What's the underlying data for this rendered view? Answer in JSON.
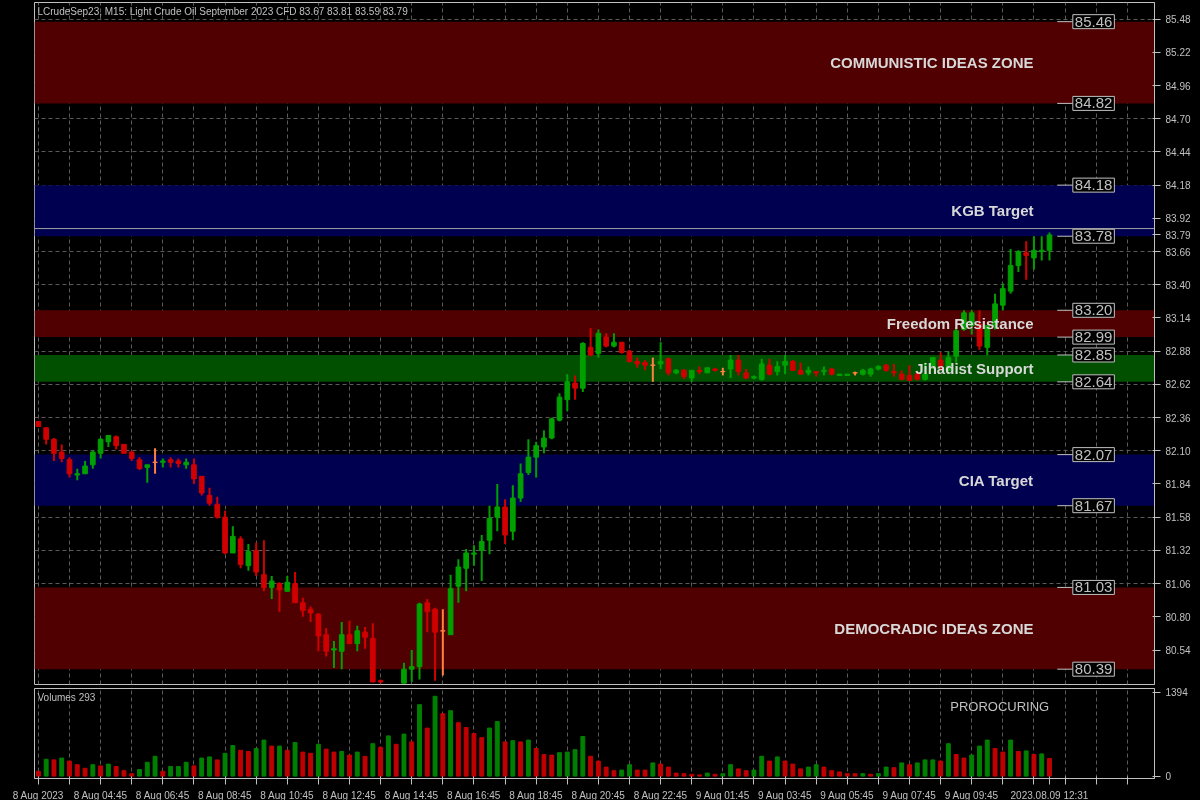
{
  "chart_data": [
    {
      "type": "candlestick",
      "title": "LCrudeSep23, M15:  Light Crude Oil September 2023 CFD  83.67 83.81 83.59 83.79",
      "categories": [
        null,
        null,
        null,
        null,
        null,
        null,
        null,
        null,
        null,
        null,
        null,
        null,
        null,
        null,
        null,
        null,
        null,
        null,
        null,
        null,
        null,
        null,
        null,
        null,
        null,
        null,
        null,
        null,
        null,
        null,
        null,
        null,
        null,
        null,
        null,
        null,
        null,
        null,
        null,
        null,
        null,
        null,
        null,
        null,
        null,
        null,
        null,
        null,
        null,
        null,
        null,
        null,
        null,
        null,
        null,
        null,
        null,
        null,
        null,
        null,
        null,
        null,
        null,
        null,
        null,
        null,
        null,
        null,
        null,
        null,
        null,
        null,
        null,
        null,
        null,
        null,
        null,
        null,
        null,
        null,
        null,
        null,
        null,
        null,
        null,
        null,
        null,
        null,
        null,
        null,
        null,
        null,
        null,
        null,
        null,
        null,
        null,
        null,
        null,
        null,
        null,
        null,
        null,
        null,
        null,
        null,
        null,
        null,
        null,
        null,
        null,
        null,
        null,
        null,
        null,
        null,
        null,
        null,
        null,
        null,
        null,
        null,
        null,
        null,
        null,
        null,
        null,
        null,
        null,
        null,
        null,
        null,
        null,
        null,
        null,
        null,
        null,
        null,
        null,
        null,
        null,
        null,
        null,
        null
      ],
      "ylim": [
        80.27,
        85.61
      ],
      "yticks": [
        85.48,
        85.22,
        84.96,
        {
          "value": 84.7,
          "label": "84.70"
        },
        84.44,
        84.18,
        83.92,
        {
          "value": 83.79,
          "label": "83.79"
        },
        83.66,
        {
          "value": 83.4,
          "label": "83.40"
        },
        83.14,
        82.88,
        82.62,
        82.36,
        {
          "value": 82.1,
          "label": "82.10"
        },
        81.84,
        81.58,
        81.32,
        81.06,
        {
          "value": 80.8,
          "label": "80.80"
        },
        80.54
      ],
      "tick_labels": "y",
      "grid": true,
      "ohlc": [
        [
          82.33,
          82.33,
          82.29,
          82.29
        ],
        [
          82.28,
          82.28,
          82.15,
          82.19
        ],
        [
          82.19,
          82.2,
          82.02,
          82.08
        ],
        [
          82.09,
          82.15,
          82.01,
          82.04
        ],
        [
          82.03,
          82.05,
          81.89,
          81.92
        ],
        [
          81.91,
          81.96,
          81.87,
          81.92
        ],
        [
          81.92,
          82.02,
          81.92,
          81.98
        ],
        [
          81.99,
          82.1,
          81.96,
          82.09
        ],
        [
          82.08,
          82.2,
          82.04,
          82.19
        ],
        [
          82.17,
          82.22,
          82.13,
          82.22
        ],
        [
          82.21,
          82.22,
          82.11,
          82.14
        ],
        [
          82.15,
          82.15,
          82.08,
          82.08
        ],
        [
          82.09,
          82.1,
          82.02,
          82.04
        ],
        [
          82.03,
          82.05,
          81.95,
          81.96
        ],
        [
          81.97,
          81.99,
          81.85,
          81.99
        ],
        [
          82.01,
          82.12,
          81.92,
          82.01
        ],
        [
          82.01,
          82.04,
          81.97,
          82.02
        ],
        [
          82.03,
          82.05,
          81.97,
          82.01
        ],
        [
          82.02,
          82.04,
          81.97,
          82.0
        ],
        [
          81.99,
          82.04,
          81.96,
          82.01
        ],
        [
          81.99,
          82.04,
          81.84,
          81.88
        ],
        [
          81.9,
          81.9,
          81.75,
          81.77
        ],
        [
          81.75,
          81.81,
          81.67,
          81.69
        ],
        [
          81.68,
          81.74,
          81.57,
          81.58
        ],
        [
          81.58,
          81.63,
          81.29,
          81.3
        ],
        [
          81.3,
          81.51,
          81.3,
          81.43
        ],
        [
          81.41,
          81.43,
          81.18,
          81.21
        ],
        [
          81.2,
          81.37,
          81.16,
          81.31
        ],
        [
          81.32,
          81.38,
          81.12,
          81.15
        ],
        [
          81.13,
          81.4,
          81.0,
          81.03
        ],
        [
          81.03,
          81.12,
          80.94,
          81.08
        ],
        [
          81.06,
          81.07,
          80.84,
          81.01
        ],
        [
          81.0,
          81.12,
          81.0,
          81.07
        ],
        [
          81.06,
          81.15,
          80.91,
          80.91
        ],
        [
          80.91,
          80.95,
          80.8,
          80.85
        ],
        [
          80.86,
          80.88,
          80.76,
          80.83
        ],
        [
          80.82,
          80.83,
          80.53,
          80.65
        ],
        [
          80.66,
          80.71,
          80.49,
          80.53
        ],
        [
          80.54,
          80.61,
          80.4,
          80.55
        ],
        [
          80.53,
          80.76,
          80.39,
          80.66
        ],
        [
          80.66,
          80.77,
          80.59,
          80.59
        ],
        [
          80.59,
          80.73,
          80.53,
          80.69
        ],
        [
          80.68,
          80.72,
          80.55,
          80.64
        ],
        [
          80.63,
          80.75,
          80.29,
          80.29
        ],
        [
          80.3,
          80.31,
          80.28,
          80.29
        ],
        null,
        null,
        [
          80.28,
          80.44,
          80.28,
          80.39
        ],
        [
          80.39,
          80.54,
          80.29,
          80.41
        ],
        [
          80.41,
          80.91,
          80.31,
          80.9
        ],
        [
          80.91,
          80.94,
          80.68,
          80.84
        ],
        [
          80.86,
          80.87,
          80.3,
          80.68
        ],
        [
          80.69,
          80.86,
          80.34,
          80.69
        ],
        [
          80.66,
          81.13,
          80.66,
          81.02
        ],
        [
          81.04,
          81.25,
          80.91,
          81.19
        ],
        [
          81.18,
          81.33,
          81.0,
          81.3
        ],
        [
          81.29,
          81.36,
          81.2,
          81.3
        ],
        [
          81.32,
          81.44,
          81.08,
          81.39
        ],
        [
          81.4,
          81.67,
          81.29,
          81.57
        ],
        [
          81.58,
          81.84,
          81.47,
          81.66
        ],
        [
          81.66,
          81.72,
          81.37,
          81.44
        ],
        [
          81.47,
          81.83,
          81.4,
          81.73
        ],
        [
          81.73,
          82.0,
          81.7,
          81.92
        ],
        [
          81.93,
          82.19,
          81.91,
          82.05
        ],
        [
          82.05,
          82.17,
          81.89,
          82.14
        ],
        [
          82.13,
          82.26,
          82.08,
          82.2
        ],
        [
          82.2,
          82.36,
          82.19,
          82.35
        ],
        [
          82.34,
          82.55,
          82.33,
          82.52
        ],
        [
          82.5,
          82.7,
          82.41,
          82.64
        ],
        [
          82.63,
          82.69,
          82.5,
          82.59
        ],
        [
          82.59,
          82.95,
          82.56,
          82.94
        ],
        [
          82.91,
          83.06,
          82.84,
          82.85
        ],
        [
          82.86,
          83.05,
          82.83,
          83.02
        ],
        [
          82.99,
          83.02,
          82.91,
          82.92
        ],
        [
          82.92,
          83.02,
          82.91,
          82.95
        ],
        [
          82.95,
          82.95,
          82.86,
          82.87
        ],
        [
          82.88,
          82.89,
          82.79,
          82.8
        ],
        [
          82.8,
          82.83,
          82.75,
          82.78
        ],
        [
          82.79,
          82.81,
          82.73,
          82.77
        ],
        [
          82.77,
          82.83,
          82.64,
          82.77
        ],
        [
          82.78,
          82.95,
          82.74,
          82.8
        ],
        [
          82.82,
          82.83,
          82.69,
          82.71
        ],
        [
          82.71,
          82.74,
          82.7,
          82.73
        ],
        [
          82.73,
          82.74,
          82.66,
          82.68
        ],
        [
          82.67,
          82.73,
          82.64,
          82.73
        ],
        [
          82.73,
          82.76,
          82.7,
          82.72
        ],
        [
          82.71,
          82.75,
          82.71,
          82.75
        ],
        [
          82.74,
          82.75,
          82.72,
          82.73
        ],
        [
          82.72,
          82.75,
          82.69,
          82.72
        ],
        [
          82.74,
          82.85,
          82.67,
          82.81
        ],
        [
          82.81,
          82.85,
          82.69,
          82.72
        ],
        [
          82.71,
          82.74,
          82.66,
          82.67
        ],
        [
          82.67,
          82.69,
          82.66,
          82.68
        ],
        [
          82.66,
          82.82,
          82.65,
          82.78
        ],
        [
          82.77,
          82.82,
          82.69,
          82.7
        ],
        [
          82.72,
          82.8,
          82.69,
          82.76
        ],
        [
          82.77,
          82.85,
          82.7,
          82.8
        ],
        [
          82.8,
          82.81,
          82.73,
          82.73
        ],
        [
          82.73,
          82.79,
          82.7,
          82.7
        ],
        [
          82.71,
          82.76,
          82.69,
          82.73
        ],
        [
          82.72,
          82.72,
          82.68,
          82.71
        ],
        [
          82.72,
          82.76,
          82.69,
          82.73
        ],
        [
          82.74,
          82.75,
          82.69,
          82.7
        ],
        [
          82.69,
          82.7,
          82.69,
          82.7
        ],
        [
          82.69,
          82.7,
          82.69,
          82.7
        ],
        [
          82.71,
          82.72,
          82.69,
          82.71
        ],
        [
          82.7,
          82.74,
          82.69,
          82.73
        ],
        [
          82.7,
          82.75,
          82.68,
          82.74
        ],
        [
          82.74,
          82.77,
          82.73,
          82.76
        ],
        [
          82.77,
          82.78,
          82.72,
          82.73
        ],
        [
          82.72,
          82.78,
          82.68,
          82.71
        ],
        [
          82.7,
          82.73,
          82.65,
          82.66
        ],
        [
          82.69,
          82.77,
          82.65,
          82.65
        ],
        [
          82.7,
          82.72,
          82.65,
          82.66
        ],
        [
          82.66,
          82.79,
          82.65,
          82.7
        ],
        [
          82.75,
          82.83,
          82.74,
          82.83
        ],
        [
          82.81,
          82.87,
          82.73,
          82.76
        ],
        [
          82.73,
          82.88,
          82.73,
          82.83
        ],
        [
          82.84,
          83.07,
          82.79,
          83.04
        ],
        [
          83.05,
          83.2,
          83.04,
          83.18
        ],
        [
          83.08,
          83.2,
          83.01,
          83.18
        ],
        [
          83.09,
          83.2,
          82.89,
          82.92
        ],
        [
          82.91,
          83.08,
          82.85,
          83.08
        ],
        [
          83.08,
          83.33,
          83.05,
          83.25
        ],
        [
          83.24,
          83.41,
          83.2,
          83.37
        ],
        [
          83.35,
          83.68,
          83.33,
          83.55
        ],
        [
          83.55,
          83.67,
          83.5,
          83.66
        ],
        [
          83.65,
          83.74,
          83.44,
          83.63
        ],
        [
          83.61,
          83.78,
          83.52,
          83.67
        ],
        [
          83.66,
          83.78,
          83.59,
          83.67
        ],
        [
          83.67,
          83.81,
          83.59,
          83.79
        ],
        null,
        null,
        null,
        null,
        null,
        null,
        null,
        null,
        null,
        null,
        null,
        null,
        null
      ],
      "colors": [
        "#d00000",
        "#d00000",
        "#d00000",
        "#d00000",
        "#d00000",
        "#00a000",
        "#00a000",
        "#00a000",
        "#00a000",
        "#00a000",
        "#d00000",
        "#d00000",
        "#d00000",
        "#d00000",
        "#00a000",
        "#ff8040",
        "#00a000",
        "#d00000",
        "#d00000",
        "#00a000",
        "#d00000",
        "#d00000",
        "#d00000",
        "#d00000",
        "#d00000",
        "#00a000",
        "#d00000",
        "#00a000",
        "#d00000",
        "#d00000",
        "#00a000",
        "#d00000",
        "#00a000",
        "#d00000",
        "#d00000",
        "#d00000",
        "#d00000",
        "#d00000",
        "#00a000",
        "#00a000",
        "#d00000",
        "#00a000",
        "#d00000",
        "#d00000",
        "#d00000",
        null,
        null,
        "#00a000",
        "#00a000",
        "#00a000",
        "#d00000",
        "#d00000",
        "#ff8040",
        "#00a000",
        "#00a000",
        "#00a000",
        "#00a000",
        "#00a000",
        "#00a000",
        "#00a000",
        "#d00000",
        "#00a000",
        "#00a000",
        "#00a000",
        "#00a000",
        "#00a000",
        "#00a000",
        "#00a000",
        "#00a000",
        "#d00000",
        "#00a000",
        "#d00000",
        "#00a000",
        "#d00000",
        "#00a000",
        "#d00000",
        "#d00000",
        "#d00000",
        "#d00000",
        "#ff8040",
        "#00a000",
        "#d00000",
        "#00a000",
        "#d00000",
        "#00a000",
        "#d00000",
        "#00a000",
        "#d00000",
        "#ff8040",
        "#00a000",
        "#d00000",
        "#d00000",
        "#00a000",
        "#00a000",
        "#d00000",
        "#00a000",
        "#00a000",
        "#d00000",
        "#d00000",
        "#00a000",
        "#d00000",
        "#00a000",
        "#d00000",
        "#00a000",
        "#00a000",
        "#ff8040",
        "#00a000",
        "#00a000",
        "#00a000",
        "#d00000",
        "#d00000",
        "#d00000",
        "#d00000",
        "#d00000",
        "#00a000",
        "#00a000",
        "#d00000",
        "#00a000",
        "#00a000",
        "#00a000",
        "#00a000",
        "#d00000",
        "#00a000",
        "#00a000",
        "#00a000",
        "#00a000",
        "#00a000",
        "#d00000",
        "#00a000",
        "#00a000",
        "#00a000",
        null,
        null,
        null,
        null,
        null,
        null,
        null,
        null,
        null,
        null,
        null,
        null,
        null
      ],
      "bands": [
        {
          "axis": "y",
          "from": 84.82,
          "to": 85.46,
          "label": "COMMUNISTIC IDEAS ZONE",
          "color": "#500000"
        },
        {
          "axis": "y",
          "from": 83.78,
          "to": 84.18,
          "label": "KGB Target",
          "color": "#000050"
        },
        {
          "axis": "y",
          "from": 82.99,
          "to": 83.2,
          "label": "Freedom Resistance",
          "color": "#500000"
        },
        {
          "axis": "y",
          "from": 82.64,
          "to": 82.85,
          "label": "Jihadist Support",
          "color": "#005000"
        },
        {
          "axis": "y",
          "from": 81.67,
          "to": 82.07,
          "label": "CIA Target",
          "color": "#000050"
        },
        {
          "axis": "y",
          "from": 80.39,
          "to": 81.03,
          "label": "DEMOCRADIC IDEAS ZONE",
          "color": "#500000"
        }
      ],
      "ref_lines": [
        {
          "axis": "y",
          "value": 85.46,
          "label": "85.46"
        },
        {
          "axis": "y",
          "value": 84.82,
          "label": "84.82"
        },
        {
          "axis": "y",
          "value": 84.18,
          "label": "84.18"
        },
        {
          "axis": "y",
          "value": 83.78,
          "label": "83.78"
        },
        {
          "axis": "y",
          "value": 83.2,
          "label": "83.20"
        },
        {
          "axis": "y",
          "value": 82.99,
          "label": "82.99"
        },
        {
          "axis": "y",
          "value": 82.85,
          "label": "82.85"
        },
        {
          "axis": "y",
          "value": 82.64,
          "label": "82.64"
        },
        {
          "axis": "y",
          "value": 82.07,
          "label": "82.07"
        },
        {
          "axis": "y",
          "value": 81.67,
          "label": "81.67"
        },
        {
          "axis": "y",
          "value": 81.03,
          "label": "81.03"
        },
        {
          "axis": "y",
          "value": 80.39,
          "label": "80.39"
        },
        {
          "axis": "y",
          "value": 83.84,
          "color": "#a0a0a0"
        }
      ]
    },
    {
      "type": "bar",
      "title": "Volumes 293",
      "ylim": [
        -40,
        1460
      ],
      "categories": [
        "8 Aug 2023",
        null,
        null,
        null,
        null,
        null,
        null,
        null,
        "8 Aug 04:45",
        null,
        null,
        null,
        null,
        null,
        null,
        null,
        "8 Aug 06:45",
        null,
        null,
        null,
        null,
        null,
        null,
        null,
        "8 Aug 08:45",
        null,
        null,
        null,
        null,
        null,
        null,
        null,
        "8 Aug 10:45",
        null,
        null,
        null,
        null,
        null,
        null,
        null,
        "8 Aug 12:45",
        null,
        null,
        null,
        null,
        null,
        null,
        null,
        "8 Aug 14:45",
        null,
        null,
        null,
        null,
        null,
        null,
        null,
        "8 Aug 16:45",
        null,
        null,
        null,
        null,
        null,
        null,
        null,
        "8 Aug 18:45",
        null,
        null,
        null,
        null,
        null,
        null,
        null,
        "8 Aug 20:45",
        null,
        null,
        null,
        null,
        null,
        null,
        null,
        "8 Aug 22:45",
        null,
        null,
        null,
        null,
        null,
        null,
        null,
        "9 Aug 01:45",
        null,
        null,
        null,
        null,
        null,
        null,
        null,
        "9 Aug 03:45",
        null,
        null,
        null,
        null,
        null,
        null,
        null,
        "9 Aug 05:45",
        null,
        null,
        null,
        null,
        null,
        null,
        null,
        "9 Aug 07:45",
        null,
        null,
        null,
        null,
        null,
        null,
        null,
        "9 Aug 09:45",
        null,
        null,
        null,
        null,
        null,
        null,
        null,
        null,
        null,
        "2023.08.09 12:31",
        null,
        null,
        null,
        null,
        null,
        null,
        null,
        null,
        null,
        null,
        null,
        null,
        null
      ],
      "yticks": [
        0,
        1394
      ],
      "grid": "x",
      "values": [
        80,
        280,
        270,
        300,
        250,
        190,
        130,
        190,
        170,
        200,
        160,
        90,
        40,
        110,
        230,
        330,
        80,
        160,
        160,
        230,
        170,
        300,
        320,
        270,
        380,
        510,
        430,
        410,
        460,
        600,
        500,
        500,
        430,
        560,
        400,
        380,
        530,
        450,
        400,
        410,
        350,
        400,
        330,
        540,
        480,
        670,
        530,
        700,
        570,
        1190,
        800,
        1330,
        1040,
        1090,
        890,
        810,
        710,
        640,
        800,
        910,
        570,
        590,
        570,
        600,
        460,
        360,
        350,
        390,
        400,
        440,
        660,
        330,
        250,
        150,
        90,
        100,
        190,
        100,
        100,
        220,
        200,
        150,
        50,
        40,
        30,
        20,
        50,
        30,
        40,
        190,
        120,
        90,
        100,
        330,
        250,
        320,
        250,
        200,
        120,
        150,
        190,
        150,
        90,
        70,
        40,
        40,
        40,
        30,
        40,
        150,
        140,
        220,
        190,
        220,
        270,
        270,
        250,
        540,
        360,
        300,
        350,
        500,
        600,
        460,
        400,
        600,
        410,
        420,
        360,
        370,
        293,
        null,
        null,
        null,
        null,
        null,
        null,
        null,
        null,
        null,
        null,
        null,
        null,
        null
      ],
      "colors": [
        "#c00000",
        "#008000",
        "#c00000",
        "#008000",
        "#c00000",
        "#c00000",
        "#c00000",
        "#008000",
        "#c00000",
        "#008000",
        "#c00000",
        "#c00000",
        "#c00000",
        "#008000",
        "#008000",
        "#008000",
        "#c00000",
        "#008000",
        "#008000",
        "#008000",
        "#c00000",
        "#008000",
        "#008000",
        "#c00000",
        "#008000",
        "#008000",
        "#c00000",
        "#c00000",
        "#008000",
        "#008000",
        "#c00000",
        "#008000",
        "#c00000",
        "#008000",
        "#c00000",
        "#c00000",
        "#008000",
        "#c00000",
        "#c00000",
        "#008000",
        "#c00000",
        "#008000",
        "#c00000",
        "#008000",
        "#c00000",
        "#008000",
        "#c00000",
        "#008000",
        "#c00000",
        "#008000",
        "#c00000",
        "#008000",
        "#c00000",
        "#008000",
        "#c00000",
        "#c00000",
        "#c00000",
        "#c00000",
        "#008000",
        "#008000",
        "#c00000",
        "#008000",
        "#c00000",
        "#008000",
        "#c00000",
        "#c00000",
        "#c00000",
        "#008000",
        "#008000",
        "#008000",
        "#008000",
        "#c00000",
        "#c00000",
        "#c00000",
        "#c00000",
        "#008000",
        "#008000",
        "#c00000",
        "#c00000",
        "#008000",
        "#c00000",
        "#c00000",
        "#c00000",
        "#c00000",
        "#c00000",
        "#c00000",
        "#008000",
        "#c00000",
        "#008000",
        "#008000",
        "#c00000",
        "#c00000",
        "#008000",
        "#008000",
        "#c00000",
        "#008000",
        "#c00000",
        "#c00000",
        "#c00000",
        "#008000",
        "#008000",
        "#c00000",
        "#c00000",
        "#c00000",
        "#c00000",
        "#c00000",
        "#008000",
        "#c00000",
        "#008000",
        "#008000",
        "#c00000",
        "#008000",
        "#c00000",
        "#008000",
        "#008000",
        "#008000",
        "#c00000",
        "#008000",
        "#c00000",
        "#c00000",
        "#008000",
        "#008000",
        "#008000",
        "#c00000",
        "#c00000",
        "#008000",
        "#c00000",
        "#008000",
        "#c00000",
        "#008000",
        "#c00000",
        null,
        null,
        null,
        null,
        null,
        null,
        null,
        null,
        null,
        null,
        null,
        null,
        null
      ],
      "annotations": [
        "PROROCURING"
      ]
    }
  ]
}
